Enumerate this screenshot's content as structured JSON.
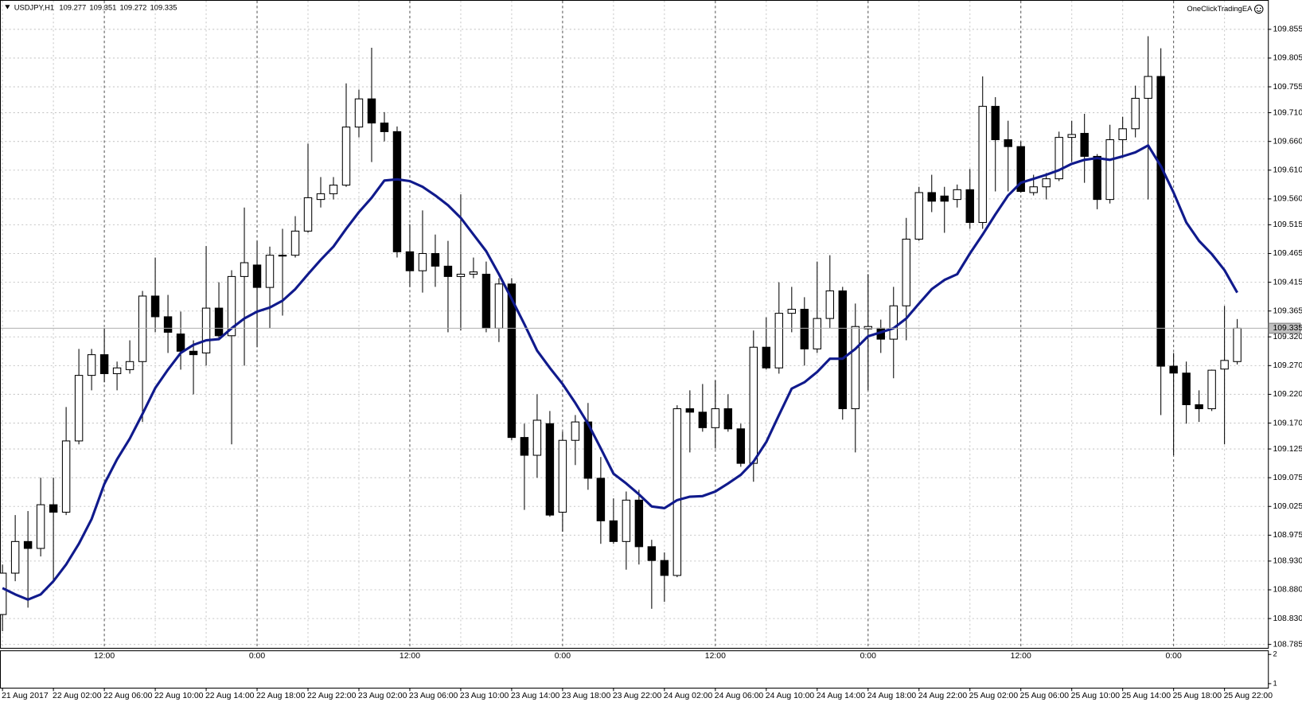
{
  "chart_data": {
    "type": "candlestick",
    "title": "USDJPY,H1",
    "brand": "OneClickTradingEA",
    "up_color": "#ffffff",
    "down_color": "#000000",
    "grid": true,
    "ylim": [
      108.779,
      109.906
    ],
    "yticks": [
      109.855,
      109.805,
      109.755,
      {
        "value": 109.71,
        "label": "109.710"
      },
      {
        "value": 109.66,
        "label": "109.660"
      },
      {
        "value": 109.61,
        "label": "109.610"
      },
      {
        "value": 109.56,
        "label": "109.560"
      },
      109.515,
      109.465,
      109.415,
      109.365,
      {
        "value": 109.32,
        "label": "109.320"
      },
      {
        "value": 109.27,
        "label": "109.270"
      },
      {
        "value": 109.22,
        "label": "109.220"
      },
      {
        "value": 109.17,
        "label": "109.170"
      },
      109.125,
      109.075,
      109.025,
      108.975,
      {
        "value": 108.93,
        "label": "108.930"
      },
      {
        "value": 108.88,
        "label": "108.880"
      },
      {
        "value": 108.83,
        "label": "108.830"
      },
      108.785
    ],
    "categories": [
      "21 Aug 2017",
      null,
      null,
      null,
      "22 Aug 02:00",
      null,
      null,
      null,
      "22 Aug 06:00",
      null,
      null,
      null,
      "22 Aug 10:00",
      null,
      null,
      null,
      "22 Aug 14:00",
      null,
      null,
      null,
      "22 Aug 18:00",
      null,
      null,
      null,
      "22 Aug 22:00",
      null,
      null,
      null,
      "23 Aug 02:00",
      null,
      null,
      null,
      "23 Aug 06:00",
      null,
      null,
      null,
      "23 Aug 10:00",
      null,
      null,
      null,
      "23 Aug 14:00",
      null,
      null,
      null,
      "23 Aug 18:00",
      null,
      null,
      null,
      "23 Aug 22:00",
      null,
      null,
      null,
      "24 Aug 02:00",
      null,
      null,
      null,
      "24 Aug 06:00",
      null,
      null,
      null,
      "24 Aug 10:00",
      null,
      null,
      null,
      "24 Aug 14:00",
      null,
      null,
      null,
      "24 Aug 18:00",
      null,
      null,
      null,
      "24 Aug 22:00",
      null,
      null,
      null,
      "25 Aug 02:00",
      null,
      null,
      null,
      "25 Aug 06:00",
      null,
      null,
      null,
      "25 Aug 10:00",
      null,
      null,
      null,
      "25 Aug 14:00",
      null,
      null,
      null,
      "25 Aug 18:00",
      null,
      null,
      null,
      "25 Aug 22:00",
      null
    ],
    "upper_time_labels": [
      null,
      null,
      null,
      null,
      null,
      null,
      null,
      null,
      "12:00",
      null,
      null,
      null,
      null,
      null,
      null,
      null,
      null,
      null,
      null,
      null,
      "0:00",
      null,
      null,
      null,
      null,
      null,
      null,
      null,
      null,
      null,
      null,
      null,
      "12:00",
      null,
      null,
      null,
      null,
      null,
      null,
      null,
      null,
      null,
      null,
      null,
      "0:00",
      null,
      null,
      null,
      null,
      null,
      null,
      null,
      null,
      null,
      null,
      null,
      "12:00",
      null,
      null,
      null,
      null,
      null,
      null,
      null,
      null,
      null,
      null,
      null,
      "0:00",
      null,
      null,
      null,
      null,
      null,
      null,
      null,
      null,
      null,
      null,
      null,
      "12:00",
      null,
      null,
      null,
      null,
      null,
      null,
      null,
      null,
      null,
      null,
      null,
      "0:00",
      null,
      null,
      null,
      null,
      null
    ],
    "open": [
      108.837,
      108.909,
      108.964,
      108.952,
      109.028,
      109.015,
      109.139,
      109.253,
      109.289,
      109.256,
      109.263,
      109.277,
      109.391,
      109.355,
      109.325,
      109.295,
      109.292,
      109.37,
      109.322,
      109.425,
      109.445,
      109.406,
      109.461,
      109.462,
      109.504,
      109.559,
      109.569,
      109.584,
      109.685,
      109.734,
      109.692,
      109.677,
      109.468,
      109.435,
      109.465,
      109.443,
      109.425,
      109.429,
      109.429,
      109.335,
      109.412,
      109.145,
      109.114,
      109.169,
      109.015,
      109.14,
      109.172,
      109.074,
      109.0,
      108.964,
      109.036,
      108.955,
      108.931,
      108.905,
      109.195,
      109.189,
      109.162,
      109.195,
      109.16,
      109.1,
      109.302,
      109.266,
      109.361,
      109.368,
      109.299,
      109.352,
      109.4,
      109.195,
      109.334,
      109.335,
      109.316,
      109.374,
      109.49,
      109.571,
      109.565,
      109.559,
      109.576,
      109.519,
      109.721,
      109.663,
      109.651,
      109.571,
      109.581,
      109.595,
      109.667,
      109.674,
      109.634,
      109.559,
      109.663,
      109.682,
      109.735,
      109.773,
      109.269,
      109.257,
      109.202,
      109.195,
      109.264,
      109.277
    ],
    "high": [
      108.924,
      109.01,
      109.017,
      109.075,
      109.075,
      109.198,
      109.299,
      109.299,
      109.335,
      109.277,
      109.314,
      109.4,
      109.458,
      109.393,
      109.364,
      109.314,
      109.478,
      109.415,
      109.436,
      109.545,
      109.487,
      109.477,
      109.508,
      109.53,
      109.656,
      109.598,
      109.598,
      109.761,
      109.75,
      109.823,
      109.711,
      109.686,
      109.516,
      109.54,
      109.498,
      109.487,
      109.568,
      109.458,
      109.451,
      109.422,
      109.422,
      109.169,
      109.22,
      109.191,
      109.155,
      109.184,
      109.205,
      109.111,
      109.039,
      109.051,
      109.054,
      108.967,
      108.945,
      109.201,
      109.227,
      109.238,
      109.244,
      109.22,
      109.169,
      109.331,
      109.354,
      109.415,
      109.407,
      109.389,
      109.451,
      109.462,
      109.407,
      109.378,
      109.429,
      109.35,
      109.407,
      109.527,
      109.581,
      109.602,
      109.581,
      109.585,
      109.612,
      109.773,
      109.737,
      109.696,
      109.66,
      109.602,
      109.605,
      109.677,
      109.696,
      109.708,
      109.638,
      109.689,
      109.703,
      109.757,
      109.843,
      109.822,
      109.292,
      109.277,
      109.227,
      109.263,
      109.374,
      109.351
    ],
    "low": [
      108.808,
      108.895,
      108.849,
      108.938,
      108.895,
      109.01,
      109.133,
      109.227,
      109.241,
      109.227,
      109.256,
      109.172,
      109.328,
      109.292,
      109.263,
      109.22,
      109.27,
      109.314,
      109.133,
      109.27,
      109.302,
      109.335,
      109.357,
      109.458,
      109.501,
      109.545,
      109.559,
      109.581,
      109.667,
      109.624,
      109.66,
      109.458,
      109.407,
      109.397,
      109.407,
      109.328,
      109.331,
      109.422,
      109.328,
      109.311,
      109.14,
      109.019,
      109.075,
      109.007,
      108.981,
      109.097,
      109.054,
      108.96,
      108.96,
      108.915,
      108.924,
      108.847,
      108.859,
      108.902,
      109.119,
      109.155,
      109.126,
      109.155,
      109.094,
      109.068,
      109.263,
      109.256,
      109.328,
      109.27,
      109.292,
      109.335,
      109.176,
      109.119,
      109.227,
      109.292,
      109.248,
      109.314,
      109.487,
      109.537,
      109.501,
      109.545,
      109.508,
      109.508,
      109.573,
      109.573,
      109.571,
      109.566,
      109.559,
      109.591,
      109.624,
      109.588,
      109.542,
      109.552,
      109.631,
      109.667,
      109.559,
      109.184,
      109.114,
      109.169,
      109.172,
      109.191,
      109.133,
      109.272
    ],
    "close": [
      108.909,
      108.964,
      108.952,
      109.028,
      109.015,
      109.139,
      109.253,
      109.289,
      109.256,
      109.266,
      109.277,
      109.391,
      109.355,
      109.328,
      109.295,
      109.289,
      109.37,
      109.322,
      109.425,
      109.449,
      109.406,
      109.462,
      109.462,
      109.504,
      109.562,
      109.569,
      109.584,
      109.685,
      109.734,
      109.692,
      109.677,
      109.468,
      109.435,
      109.465,
      109.443,
      109.425,
      109.429,
      109.433,
      109.335,
      109.412,
      109.145,
      109.114,
      109.175,
      109.01,
      109.14,
      109.172,
      109.074,
      109.0,
      108.964,
      109.036,
      108.955,
      108.931,
      108.905,
      109.195,
      109.189,
      109.162,
      109.195,
      109.16,
      109.1,
      109.302,
      109.266,
      109.361,
      109.368,
      109.299,
      109.352,
      109.4,
      109.195,
      109.338,
      109.338,
      109.316,
      109.374,
      109.49,
      109.571,
      109.556,
      109.556,
      109.576,
      109.519,
      109.721,
      109.663,
      109.651,
      109.573,
      109.581,
      109.595,
      109.667,
      109.672,
      109.634,
      109.559,
      109.663,
      109.682,
      109.735,
      109.773,
      109.269,
      109.257,
      109.202,
      109.195,
      109.262,
      109.279,
      109.335
    ],
    "ma_line": {
      "color": "#101a8c",
      "values": [
        108.883,
        108.872,
        108.863,
        108.872,
        108.895,
        108.924,
        108.96,
        109.003,
        109.064,
        109.107,
        109.143,
        109.186,
        109.231,
        109.263,
        109.292,
        109.306,
        109.314,
        109.316,
        109.335,
        109.352,
        109.364,
        109.371,
        109.383,
        109.403,
        109.429,
        109.454,
        109.477,
        109.508,
        109.537,
        109.562,
        109.592,
        109.594,
        109.591,
        109.581,
        109.566,
        109.549,
        109.527,
        109.498,
        109.469,
        109.429,
        109.386,
        109.342,
        109.296,
        109.266,
        109.238,
        109.205,
        109.169,
        109.126,
        109.082,
        109.065,
        109.046,
        109.025,
        109.022,
        109.036,
        109.042,
        109.043,
        109.051,
        109.065,
        109.08,
        109.103,
        109.137,
        109.184,
        109.23,
        109.241,
        109.259,
        109.282,
        109.282,
        109.299,
        109.321,
        109.328,
        109.335,
        109.352,
        109.378,
        109.403,
        109.419,
        109.429,
        109.465,
        109.498,
        109.533,
        109.566,
        109.588,
        109.595,
        109.602,
        109.61,
        109.621,
        109.628,
        109.631,
        109.628,
        109.634,
        109.641,
        109.653,
        109.617,
        109.571,
        109.519,
        109.487,
        109.464,
        109.436,
        109.397
      ]
    },
    "subwindow": {
      "ylim": [
        0.86,
        2.14
      ],
      "yticks": [
        2,
        1
      ]
    }
  }
}
